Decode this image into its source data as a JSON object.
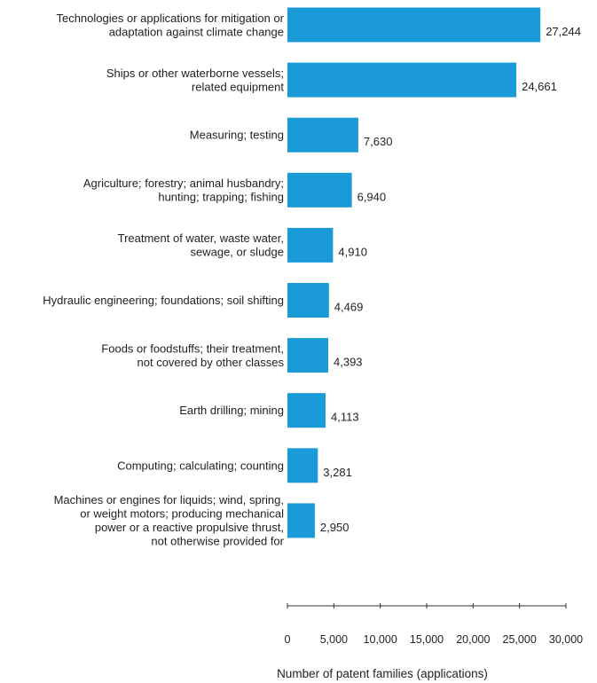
{
  "chart_data": {
    "type": "bar",
    "orientation": "horizontal",
    "categories": [
      [
        "Technologies or applications for mitigation or",
        "adaptation against climate change"
      ],
      [
        "Ships or other waterborne vessels;",
        "related equipment"
      ],
      [
        "Measuring; testing"
      ],
      [
        "Agriculture; forestry; animal husbandry;",
        "hunting; trapping; fishing"
      ],
      [
        "Treatment of water, waste water,",
        "sewage, or sludge"
      ],
      [
        "Hydraulic engineering; foundations; soil shifting"
      ],
      [
        "Foods or foodstuffs; their treatment,",
        "not covered by other classes"
      ],
      [
        "Earth drilling; mining"
      ],
      [
        "Computing; calculating; counting"
      ],
      [
        "Machines or engines for liquids; wind, spring,",
        "or weight motors; producing mechanical",
        "power or a reactive propulsive thrust,",
        "not otherwise provided for"
      ]
    ],
    "values": [
      27244,
      24661,
      7630,
      6940,
      4910,
      4469,
      4393,
      4113,
      3281,
      2950
    ],
    "value_labels": [
      "27,244",
      "24,661",
      "7,630",
      "6,940",
      "4,910",
      "4,469",
      "4,393",
      "4,113",
      "3,281",
      "2,950"
    ],
    "xlabel": "Number of patent families (applications)",
    "xlim": [
      0,
      30000
    ],
    "xticks": [
      0,
      5000,
      10000,
      15000,
      20000,
      25000,
      30000
    ],
    "xtick_labels": [
      "0",
      "5,000",
      "10,000",
      "15,000",
      "20,000",
      "25,000",
      "30,000"
    ],
    "bar_color": "#1a9ad6",
    "grid": false,
    "legend": "none"
  }
}
